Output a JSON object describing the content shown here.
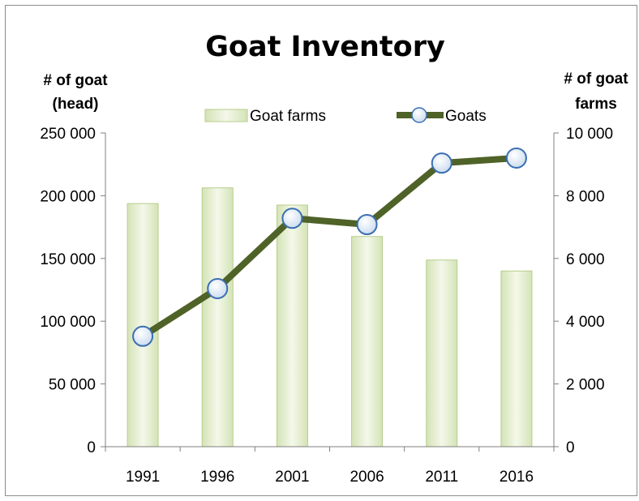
{
  "chart_data": {
    "type": "bar+line",
    "title": "Goat Inventory",
    "y_left_label": [
      "# of goat",
      "(head)"
    ],
    "y_right_label": [
      "# of goat",
      "farms"
    ],
    "categories": [
      "1991",
      "1996",
      "2001",
      "2006",
      "2011",
      "2016"
    ],
    "series": [
      {
        "name": "Goat farms",
        "type": "bar",
        "axis": "right",
        "values": [
          7750,
          8250,
          7700,
          6700,
          5950,
          5600
        ]
      },
      {
        "name": "Goats",
        "type": "line",
        "axis": "left",
        "values": [
          88000,
          126000,
          182000,
          177000,
          226000,
          230000
        ]
      }
    ],
    "y_left": {
      "min": 0,
      "max": 250000,
      "ticks": [
        0,
        50000,
        100000,
        150000,
        200000,
        250000
      ],
      "tick_labels": [
        "0",
        "50 000",
        "100 000",
        "150 000",
        "200 000",
        "250 000"
      ]
    },
    "y_right": {
      "min": 0,
      "max": 10000,
      "ticks": [
        0,
        2000,
        4000,
        6000,
        8000,
        10000
      ],
      "tick_labels": [
        "0",
        "2 000",
        "4 000",
        "6 000",
        "8 000",
        "10 000"
      ]
    },
    "legend": "top",
    "grid": false,
    "colors": {
      "bar_fill": "#e6efd0",
      "bar_stroke": "#b7cd8a",
      "line": "#4f6228",
      "marker_fill": "#dce8f5",
      "marker_stroke": "#3a6fb0"
    }
  }
}
